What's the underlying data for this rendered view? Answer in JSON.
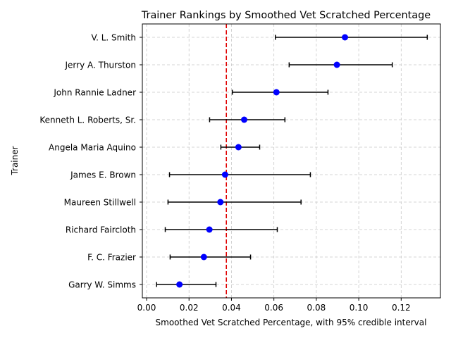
{
  "chart_data": {
    "type": "scatter",
    "title": "Trainer Rankings by Smoothed Vet Scratched Percentage",
    "xlabel": "Smoothed Vet Scratched Percentage, with 95% credible interval",
    "ylabel": "Trainer",
    "xlim": [
      -0.002,
      0.1385
    ],
    "xticks": [
      0.0,
      0.02,
      0.04,
      0.06,
      0.08,
      0.1,
      0.12
    ],
    "xtick_labels": [
      "0.00",
      "0.02",
      "0.04",
      "0.06",
      "0.08",
      "0.10",
      "0.12"
    ],
    "grid": true,
    "reference_line": {
      "x": 0.0376,
      "color": "#e00000",
      "style": "dashed"
    },
    "point_color": "#0000ff",
    "errorbar_color": "#000000",
    "trainers": [
      {
        "name": "V. L. Smith",
        "value": 0.0935,
        "lower": 0.0607,
        "upper": 0.1323
      },
      {
        "name": "Jerry A. Thurston",
        "value": 0.0897,
        "lower": 0.0672,
        "upper": 0.1158
      },
      {
        "name": "John Rannie Ladner",
        "value": 0.0612,
        "lower": 0.0404,
        "upper": 0.0855
      },
      {
        "name": "Kenneth L. Roberts, Sr.",
        "value": 0.046,
        "lower": 0.0297,
        "upper": 0.0652
      },
      {
        "name": "Angela Maria Aquino",
        "value": 0.0433,
        "lower": 0.035,
        "upper": 0.0533
      },
      {
        "name": "James E. Brown",
        "value": 0.037,
        "lower": 0.0108,
        "upper": 0.0772
      },
      {
        "name": "Maureen Stillwell",
        "value": 0.0348,
        "lower": 0.0101,
        "upper": 0.0728
      },
      {
        "name": "Richard Faircloth",
        "value": 0.0296,
        "lower": 0.0088,
        "upper": 0.0616
      },
      {
        "name": "F. C. Frazier",
        "value": 0.027,
        "lower": 0.0111,
        "upper": 0.049
      },
      {
        "name": "Garry W. Simms",
        "value": 0.0155,
        "lower": 0.0047,
        "upper": 0.0327
      }
    ]
  }
}
